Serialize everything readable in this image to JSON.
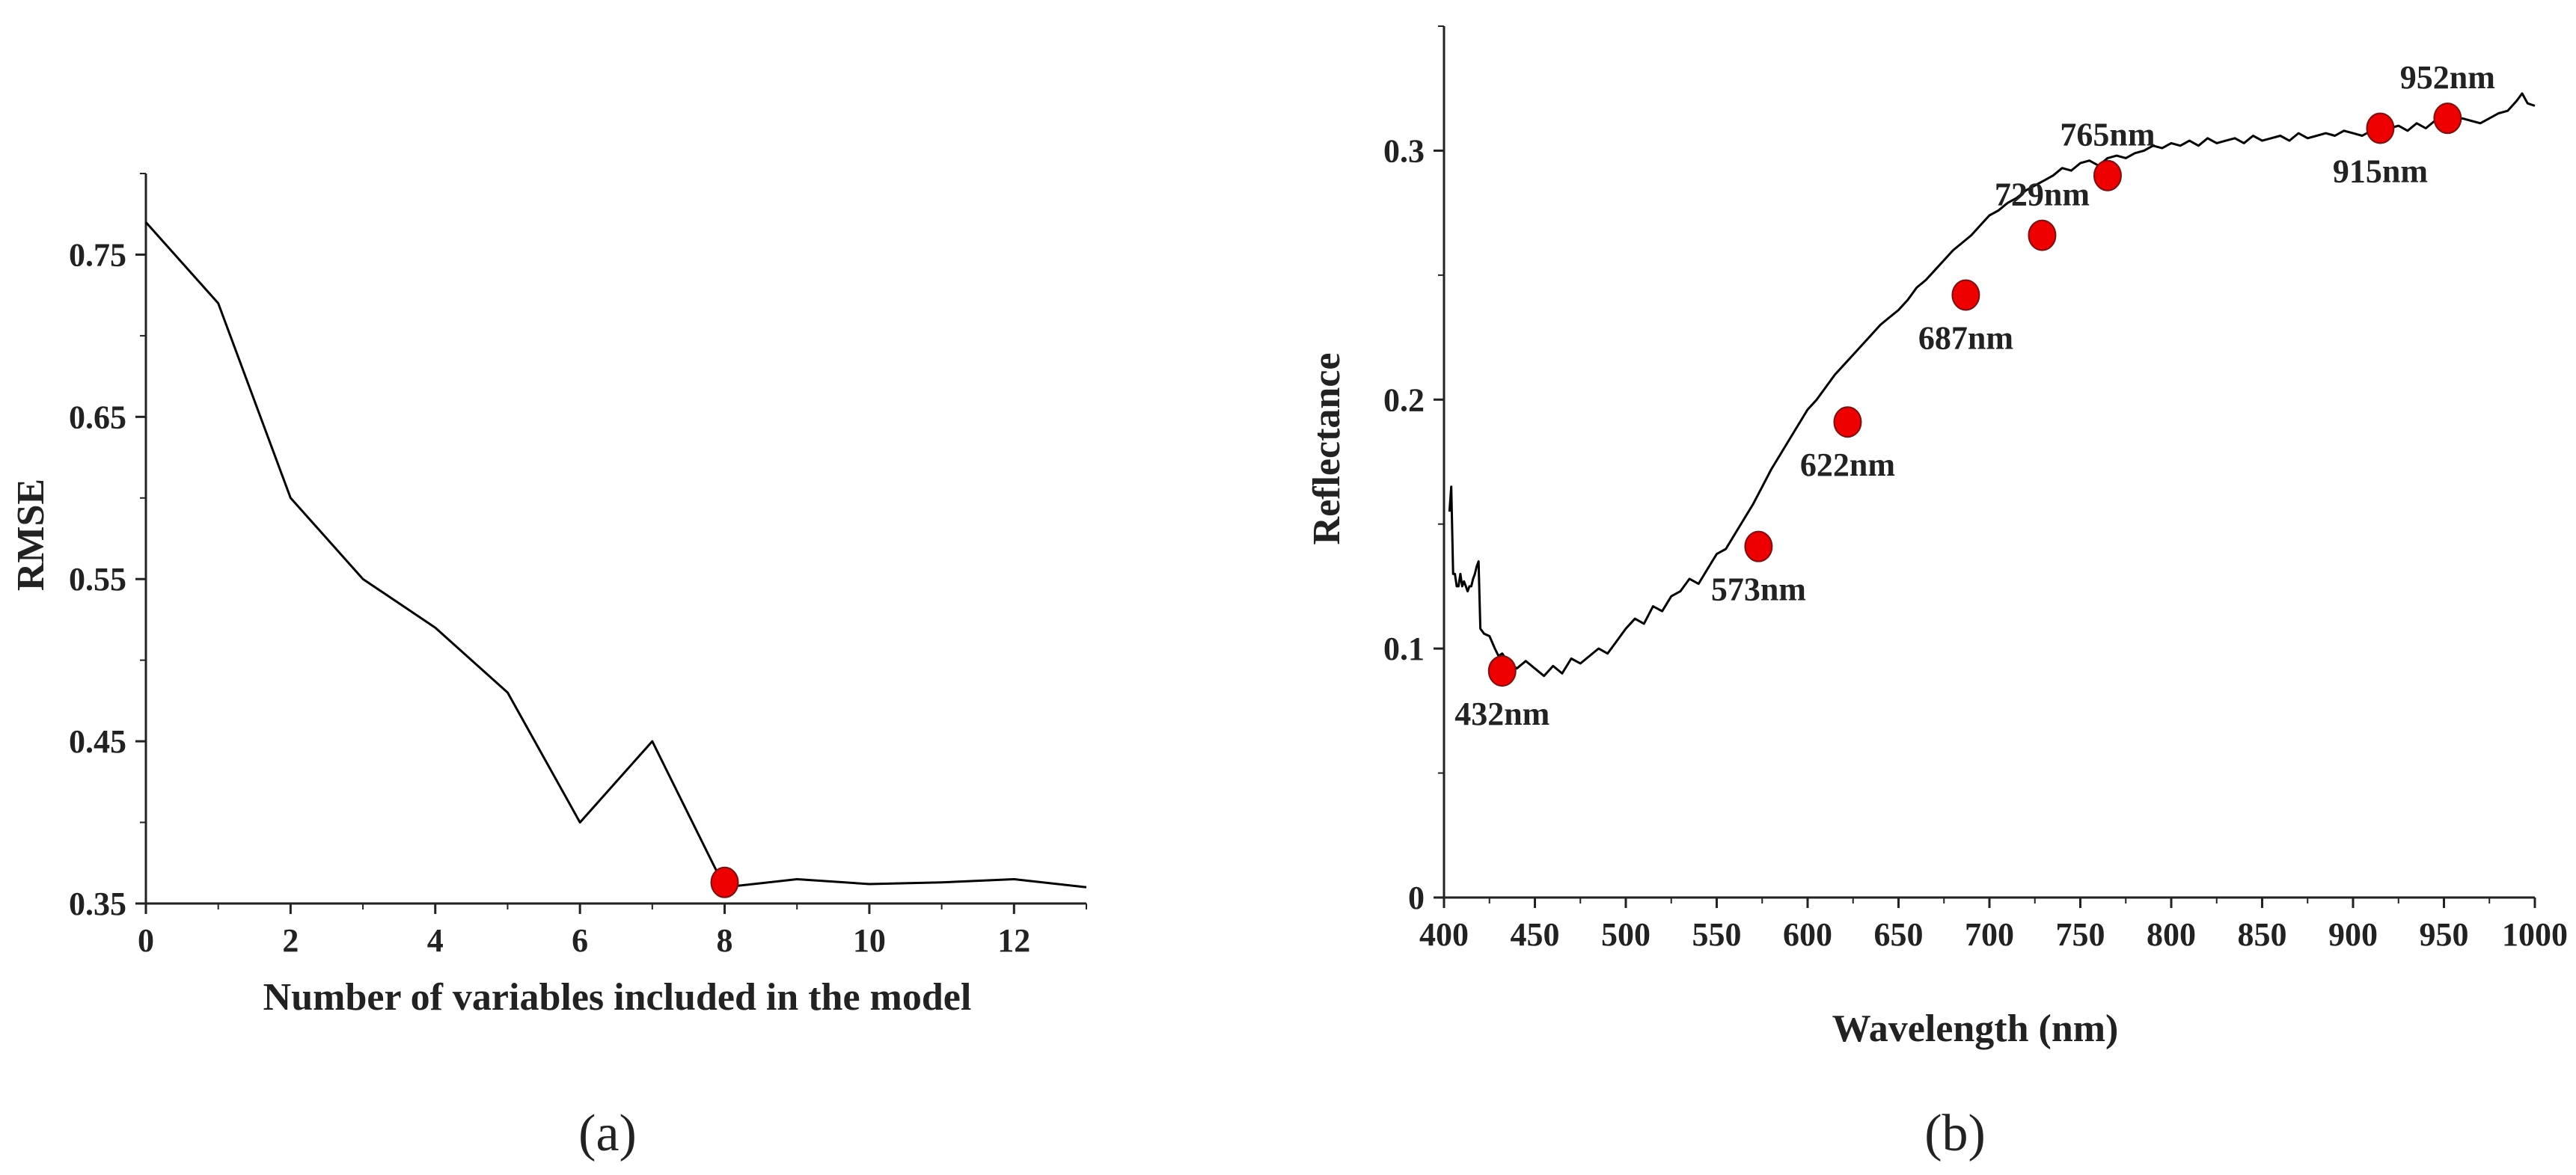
{
  "chart_data": [
    {
      "id": "a",
      "type": "line",
      "panel_label": "(a)",
      "title": "",
      "xlabel": "Number of variables included in the model",
      "ylabel": "RMSE",
      "xlim": [
        0,
        13
      ],
      "ylim": [
        0.35,
        0.8
      ],
      "xticks": [
        0,
        2,
        4,
        6,
        8,
        10,
        12
      ],
      "xtick_labels": [
        "0",
        "2",
        "4",
        "6",
        "8",
        "10",
        "12"
      ],
      "yticks": [
        0.35,
        0.45,
        0.55,
        0.65,
        0.75
      ],
      "ytick_labels": [
        "0.35",
        "0.45",
        "0.55",
        "0.65",
        "0.75"
      ],
      "grid": false,
      "series": [
        {
          "name": "RMSE",
          "color": "#000000",
          "x": [
            0,
            1,
            2,
            3,
            4,
            5,
            6,
            7,
            8,
            9,
            10,
            11,
            12,
            13
          ],
          "y": [
            0.77,
            0.72,
            0.6,
            0.55,
            0.52,
            0.48,
            0.4,
            0.45,
            0.36,
            0.365,
            0.362,
            0.363,
            0.365,
            0.36
          ]
        }
      ],
      "highlight": [
        {
          "x": 8,
          "y": 0.363,
          "color": "#ee0000"
        }
      ]
    },
    {
      "id": "b",
      "type": "line",
      "panel_label": "(b)",
      "title": "",
      "xlabel": "Wavelength (nm)",
      "ylabel": "Reflectance",
      "xlim": [
        400,
        1000
      ],
      "ylim": [
        0,
        0.35
      ],
      "xticks": [
        400,
        450,
        500,
        550,
        600,
        650,
        700,
        750,
        800,
        850,
        900,
        950,
        1000
      ],
      "xtick_labels": [
        "400",
        "450",
        "500",
        "550",
        "600",
        "650",
        "700",
        "750",
        "800",
        "850",
        "900",
        "950",
        "1000"
      ],
      "yticks": [
        0,
        0.1,
        0.2,
        0.3
      ],
      "ytick_labels": [
        "0",
        "0.1",
        "0.2",
        "0.3"
      ],
      "grid": false,
      "series": [
        {
          "name": "Reflectance spectrum",
          "color": "#000000",
          "x": [
            403,
            404,
            405,
            406,
            407,
            408,
            409,
            410,
            411,
            412,
            413,
            414,
            415,
            416,
            417,
            418,
            419,
            420,
            422,
            425,
            428,
            430,
            432,
            435,
            440,
            445,
            450,
            455,
            460,
            465,
            470,
            475,
            480,
            485,
            490,
            495,
            500,
            505,
            510,
            515,
            520,
            525,
            530,
            535,
            540,
            545,
            550,
            555,
            560,
            565,
            570,
            575,
            580,
            585,
            590,
            595,
            600,
            605,
            610,
            615,
            620,
            625,
            630,
            635,
            640,
            645,
            650,
            655,
            660,
            665,
            670,
            675,
            680,
            685,
            690,
            695,
            700,
            705,
            710,
            715,
            720,
            725,
            730,
            735,
            740,
            745,
            750,
            755,
            760,
            765,
            770,
            775,
            780,
            785,
            790,
            795,
            800,
            805,
            810,
            815,
            820,
            825,
            830,
            835,
            840,
            845,
            850,
            855,
            860,
            865,
            870,
            875,
            880,
            885,
            890,
            895,
            900,
            905,
            910,
            915,
            920,
            925,
            930,
            935,
            940,
            945,
            950,
            955,
            960,
            965,
            970,
            975,
            980,
            985,
            990,
            993,
            996,
            1000
          ],
          "y": [
            0.155,
            0.165,
            0.13,
            0.13,
            0.125,
            0.125,
            0.13,
            0.125,
            0.127,
            0.125,
            0.123,
            0.125,
            0.125,
            0.128,
            0.13,
            0.133,
            0.135,
            0.108,
            0.106,
            0.105,
            0.1,
            0.097,
            0.098,
            0.095,
            0.092,
            0.095,
            0.092,
            0.089,
            0.093,
            0.09,
            0.096,
            0.094,
            0.097,
            0.1,
            0.098,
            0.103,
            0.108,
            0.112,
            0.11,
            0.117,
            0.115,
            0.121,
            0.123,
            0.128,
            0.126,
            0.132,
            0.138,
            0.14,
            0.146,
            0.152,
            0.158,
            0.165,
            0.172,
            0.178,
            0.184,
            0.19,
            0.196,
            0.2,
            0.205,
            0.21,
            0.214,
            0.218,
            0.222,
            0.226,
            0.23,
            0.233,
            0.236,
            0.24,
            0.245,
            0.248,
            0.252,
            0.256,
            0.26,
            0.263,
            0.266,
            0.27,
            0.274,
            0.276,
            0.279,
            0.281,
            0.284,
            0.286,
            0.288,
            0.29,
            0.293,
            0.292,
            0.295,
            0.296,
            0.294,
            0.297,
            0.298,
            0.297,
            0.299,
            0.3,
            0.302,
            0.301,
            0.303,
            0.302,
            0.304,
            0.302,
            0.305,
            0.303,
            0.304,
            0.305,
            0.303,
            0.306,
            0.304,
            0.305,
            0.306,
            0.304,
            0.307,
            0.305,
            0.306,
            0.307,
            0.306,
            0.308,
            0.307,
            0.306,
            0.308,
            0.307,
            0.309,
            0.31,
            0.308,
            0.311,
            0.309,
            0.312,
            0.31,
            0.311,
            0.313,
            0.312,
            0.311,
            0.313,
            0.315,
            0.316,
            0.32,
            0.323,
            0.319,
            0.318
          ]
        }
      ],
      "highlight": [
        {
          "x": 432,
          "y": 0.091,
          "label": "432nm",
          "label_pos": "below",
          "color": "#ee0000"
        },
        {
          "x": 573,
          "y": 0.141,
          "label": "573nm",
          "label_pos": "below",
          "color": "#ee0000"
        },
        {
          "x": 622,
          "y": 0.191,
          "label": "622nm",
          "label_pos": "below",
          "color": "#ee0000"
        },
        {
          "x": 687,
          "y": 0.242,
          "label": "687nm",
          "label_pos": "below",
          "color": "#ee0000"
        },
        {
          "x": 729,
          "y": 0.266,
          "label": "729nm",
          "label_pos": "above",
          "color": "#ee0000"
        },
        {
          "x": 765,
          "y": 0.29,
          "label": "765nm",
          "label_pos": "above",
          "color": "#ee0000"
        },
        {
          "x": 915,
          "y": 0.309,
          "label": "915nm",
          "label_pos": "below",
          "color": "#ee0000"
        },
        {
          "x": 952,
          "y": 0.313,
          "label": "952nm",
          "label_pos": "above",
          "color": "#ee0000"
        }
      ]
    }
  ]
}
